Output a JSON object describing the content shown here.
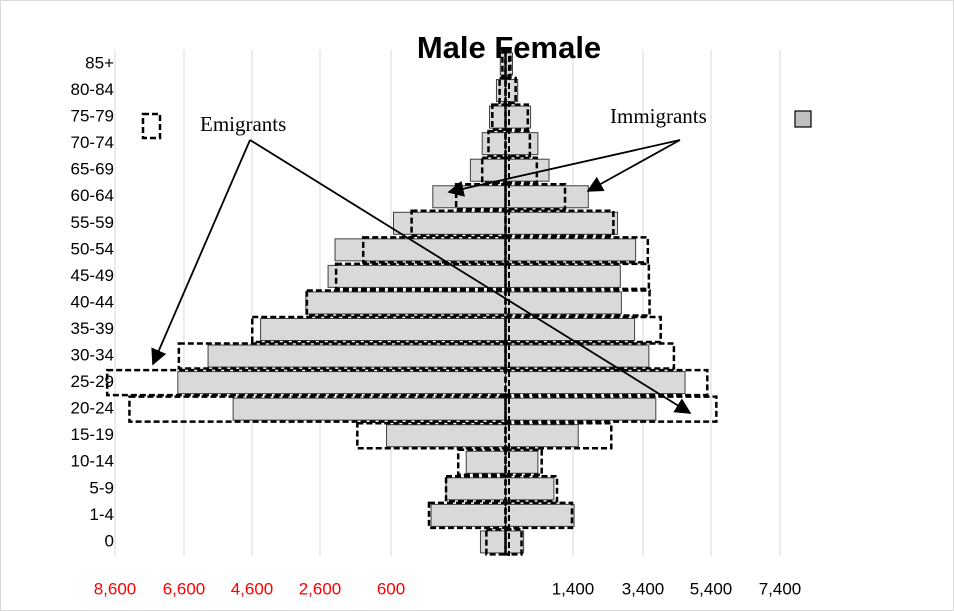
{
  "chart_data": {
    "type": "population-pyramid",
    "title": "Male Female",
    "categories": [
      "85+",
      "80-84",
      "75-79",
      "70-74",
      "65-69",
      "60-64",
      "55-59",
      "50-54",
      "45-49",
      "40-44",
      "35-39",
      "30-34",
      "25-29",
      "20-24",
      "15-19",
      "10-14",
      "5-9",
      "1-4",
      "0"
    ],
    "series": [
      {
        "name": "Immigrants",
        "style": "filled",
        "color": "#d9d9d9",
        "edge_color": "#404040",
        "male": [
          150,
          260,
          460,
          670,
          1010,
          2090,
          3220,
          4900,
          5100,
          5740,
          7040,
          8550,
          9420,
          7830,
          3420,
          1130,
          1710,
          2140,
          720
        ],
        "female": [
          200,
          350,
          720,
          930,
          1250,
          2380,
          3220,
          3740,
          3300,
          3330,
          3710,
          4120,
          5160,
          4320,
          2090,
          930,
          1390,
          1970,
          520
        ]
      },
      {
        "name": "Emigrants",
        "style": "dashed",
        "color": "#000000",
        "male": [
          90,
          170,
          380,
          490,
          670,
          1420,
          2700,
          4090,
          4870,
          5710,
          7280,
          9390,
          11450,
          10810,
          4260,
          1360,
          1710,
          2200,
          550
        ],
        "female": [
          140,
          290,
          640,
          700,
          900,
          1710,
          3100,
          4090,
          4120,
          4140,
          4460,
          4840,
          5800,
          6060,
          3040,
          1040,
          1480,
          1910,
          460
        ]
      }
    ],
    "xlim": [
      -11800,
      12000
    ],
    "x_axis_labels": [
      {
        "label": "8,600",
        "color": "#ff0000"
      },
      {
        "label": "6,600",
        "color": "#ff0000"
      },
      {
        "label": "4,600",
        "color": "#ff0000"
      },
      {
        "label": "2,600",
        "color": "#ff0000"
      },
      {
        "label": "600",
        "color": "#ff0000"
      },
      {
        "label": "1,400",
        "color": "#000000"
      },
      {
        "label": "3,400",
        "color": "#000000"
      },
      {
        "label": "5,400",
        "color": "#000000"
      },
      {
        "label": "7,400",
        "color": "#000000"
      }
    ],
    "grid": true
  }
}
